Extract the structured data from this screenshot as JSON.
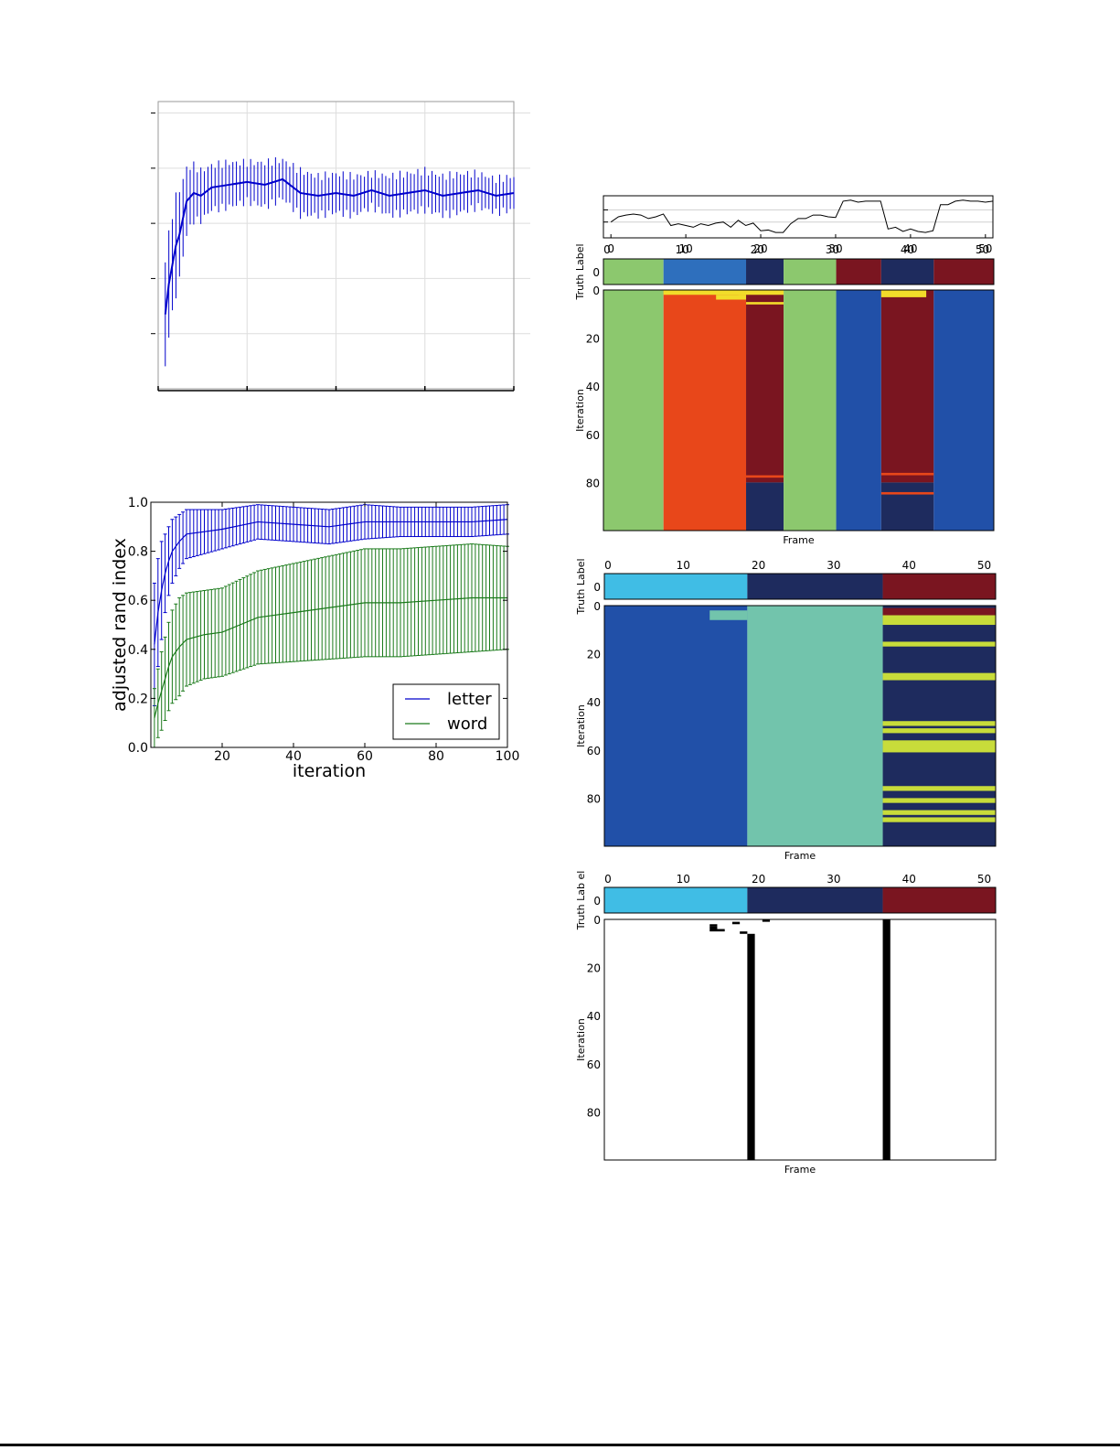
{
  "colors": {
    "letter": "#0000cc",
    "word": "#1a7a1a",
    "light_green": "#8cc86e",
    "mid_blue": "#2e6fbd",
    "navy": "#1e2b5e",
    "dark_red": "#7a1520",
    "orange": "#e8471a",
    "royal_blue": "#2150a8",
    "sky_blue": "#40bde5",
    "teal": "#72c4ac",
    "yellow": "#f2dc2a",
    "yellow_green": "#c8dc3a"
  },
  "chart_data": [
    {
      "id": "top-left",
      "type": "line",
      "title": "",
      "xlabel": "",
      "ylabel": "",
      "xlim": [
        0,
        100
      ],
      "ylim": [
        0,
        1.0
      ],
      "grid": true,
      "x_ticks": [
        0,
        25,
        50,
        75,
        100
      ],
      "y_ticks": [
        0.2,
        0.4,
        0.6,
        0.8,
        1.0
      ],
      "tick_labels_visible": false,
      "series": [
        {
          "color": "#0000cc",
          "x": [
            2,
            3,
            4,
            5,
            6,
            7,
            8,
            10,
            12,
            15,
            20,
            25,
            30,
            35,
            40,
            45,
            50,
            55,
            60,
            65,
            70,
            75,
            80,
            85,
            90,
            95,
            100
          ],
          "mean": [
            0.27,
            0.38,
            0.45,
            0.52,
            0.56,
            0.62,
            0.68,
            0.71,
            0.7,
            0.73,
            0.74,
            0.75,
            0.74,
            0.76,
            0.71,
            0.7,
            0.71,
            0.7,
            0.72,
            0.7,
            0.71,
            0.72,
            0.7,
            0.71,
            0.72,
            0.7,
            0.71
          ],
          "err": [
            0.2,
            0.18,
            0.18,
            0.18,
            0.16,
            0.14,
            0.12,
            0.1,
            0.09,
            0.08,
            0.08,
            0.07,
            0.08,
            0.07,
            0.08,
            0.07,
            0.07,
            0.07,
            0.06,
            0.07,
            0.07,
            0.07,
            0.07,
            0.07,
            0.06,
            0.06,
            0.06
          ]
        }
      ]
    },
    {
      "id": "ari",
      "type": "line",
      "xlabel": "iteration",
      "ylabel": "adjusted rand index",
      "xlim": [
        0,
        100
      ],
      "ylim": [
        0,
        1.0
      ],
      "x_ticks": [
        "20",
        "40",
        "60",
        "80",
        "100"
      ],
      "y_ticks": [
        "0.0",
        "0.2",
        "0.4",
        "0.6",
        "0.8",
        "1.0"
      ],
      "legend_position": "lower-right",
      "series": [
        {
          "name": "letter",
          "color": "#0000cc",
          "x": [
            1,
            2,
            3,
            4,
            5,
            6,
            8,
            10,
            15,
            20,
            30,
            40,
            50,
            60,
            70,
            80,
            90,
            100
          ],
          "mean": [
            0.42,
            0.55,
            0.64,
            0.71,
            0.76,
            0.8,
            0.84,
            0.87,
            0.88,
            0.89,
            0.92,
            0.91,
            0.9,
            0.92,
            0.92,
            0.92,
            0.92,
            0.93
          ],
          "err": [
            0.25,
            0.22,
            0.2,
            0.16,
            0.14,
            0.13,
            0.11,
            0.1,
            0.09,
            0.08,
            0.07,
            0.07,
            0.07,
            0.07,
            0.06,
            0.06,
            0.06,
            0.06
          ]
        },
        {
          "name": "word",
          "color": "#1a7a1a",
          "x": [
            1,
            2,
            3,
            4,
            5,
            6,
            8,
            10,
            15,
            20,
            30,
            40,
            50,
            60,
            70,
            80,
            90,
            100
          ],
          "mean": [
            0.12,
            0.18,
            0.23,
            0.28,
            0.33,
            0.37,
            0.41,
            0.44,
            0.46,
            0.47,
            0.53,
            0.55,
            0.57,
            0.59,
            0.59,
            0.6,
            0.61,
            0.61
          ],
          "err": [
            0.12,
            0.14,
            0.16,
            0.17,
            0.18,
            0.19,
            0.2,
            0.19,
            0.18,
            0.18,
            0.19,
            0.2,
            0.21,
            0.22,
            0.22,
            0.22,
            0.22,
            0.21
          ]
        }
      ]
    },
    {
      "id": "sensor",
      "type": "line",
      "xlim": [
        -1,
        51
      ],
      "x_ticks": [
        "0",
        "10",
        "20",
        "30",
        "40",
        "50"
      ],
      "values": [
        0.35,
        0.5,
        0.55,
        0.58,
        0.55,
        0.45,
        0.5,
        0.58,
        0.25,
        0.3,
        0.25,
        0.2,
        0.3,
        0.25,
        0.32,
        0.35,
        0.2,
        0.4,
        0.25,
        0.32,
        0.1,
        0.12,
        0.05,
        0.05,
        0.3,
        0.45,
        0.45,
        0.55,
        0.55,
        0.5,
        0.48,
        0.95,
        0.98,
        0.92,
        0.95,
        0.95,
        0.95,
        0.15,
        0.2,
        0.08,
        0.15,
        0.08,
        0.05,
        0.1,
        0.85,
        0.85,
        0.95,
        0.98,
        0.95,
        0.95,
        0.92,
        0.95
      ]
    },
    {
      "id": "heatmap-a",
      "type": "heatmap",
      "x_ticks": [
        "0",
        "10",
        "20",
        "30",
        "40",
        "50"
      ],
      "y_ticks": [
        "0",
        "20",
        "40",
        "60",
        "80"
      ],
      "truth_ylabel": "Truth Label",
      "truth_ytick": "0",
      "ylabel": "Iteration",
      "xlabel": "Frame",
      "truth": [
        {
          "from": 0,
          "to": 7,
          "color": "#8cc86e"
        },
        {
          "from": 8,
          "to": 18,
          "color": "#2e6fbd"
        },
        {
          "from": 19,
          "to": 23,
          "color": "#1e2b5e"
        },
        {
          "from": 24,
          "to": 30,
          "color": "#8cc86e"
        },
        {
          "from": 31,
          "to": 36,
          "color": "#7a1520"
        },
        {
          "from": 37,
          "to": 43,
          "color": "#1e2b5e"
        },
        {
          "from": 44,
          "to": 51,
          "color": "#7a1520"
        }
      ],
      "iterations": [
        {
          "from": 0,
          "to": 7,
          "it0": 0,
          "it1": 99,
          "color": "#8cc86e"
        },
        {
          "from": 8,
          "to": 18,
          "it0": 0,
          "it1": 99,
          "color": "#e8471a"
        },
        {
          "from": 19,
          "to": 23,
          "it0": 0,
          "it1": 79,
          "color": "#7a1520"
        },
        {
          "from": 19,
          "to": 23,
          "it0": 80,
          "it1": 99,
          "color": "#1e2b5e"
        },
        {
          "from": 24,
          "to": 30,
          "it0": 0,
          "it1": 99,
          "color": "#8cc86e"
        },
        {
          "from": 31,
          "to": 36,
          "it0": 0,
          "it1": 99,
          "color": "#2150a8"
        },
        {
          "from": 37,
          "to": 43,
          "it0": 0,
          "it1": 79,
          "color": "#7a1520"
        },
        {
          "from": 37,
          "to": 43,
          "it0": 80,
          "it1": 99,
          "color": "#1e2b5e"
        },
        {
          "from": 44,
          "to": 51,
          "it0": 0,
          "it1": 99,
          "color": "#2150a8"
        },
        {
          "from": 8,
          "to": 18,
          "it0": 0,
          "it1": 1,
          "color": "#f2dc2a"
        },
        {
          "from": 15,
          "to": 18,
          "it0": 2,
          "it1": 3,
          "color": "#f2dc2a"
        },
        {
          "from": 18,
          "to": 23,
          "it0": 0,
          "it1": 1,
          "color": "#f2dc2a"
        },
        {
          "from": 19,
          "to": 23,
          "it0": 5,
          "it1": 5,
          "color": "#f2dc2a"
        },
        {
          "from": 37,
          "to": 42,
          "it0": 0,
          "it1": 2,
          "color": "#f2dc2a"
        },
        {
          "from": 19,
          "to": 23,
          "it0": 77,
          "it1": 77,
          "color": "#e8471a"
        },
        {
          "from": 37,
          "to": 43,
          "it0": 76,
          "it1": 76,
          "color": "#e8471a"
        },
        {
          "from": 37,
          "to": 43,
          "it0": 84,
          "it1": 84,
          "color": "#e8471a"
        }
      ]
    },
    {
      "id": "heatmap-b",
      "type": "heatmap",
      "x_ticks": [
        "0",
        "10",
        "20",
        "30",
        "40",
        "50"
      ],
      "y_ticks": [
        "0",
        "20",
        "40",
        "60",
        "80"
      ],
      "truth_ylabel": "Truth Label",
      "truth_ytick": "0",
      "ylabel": "Iteration",
      "xlabel": "Frame",
      "truth": [
        {
          "from": 0,
          "to": 18,
          "color": "#40bde5"
        },
        {
          "from": 19,
          "to": 36,
          "color": "#1e2b5e"
        },
        {
          "from": 37,
          "to": 51,
          "color": "#7a1520"
        }
      ],
      "iterations": [
        {
          "from": 0,
          "to": 18,
          "it0": 0,
          "it1": 99,
          "color": "#2150a8"
        },
        {
          "from": 19,
          "to": 36,
          "it0": 0,
          "it1": 99,
          "color": "#72c4ac"
        },
        {
          "from": 37,
          "to": 51,
          "it0": 0,
          "it1": 99,
          "color": "#1e2b5e"
        },
        {
          "from": 14,
          "to": 18,
          "it0": 2,
          "it1": 5,
          "color": "#72c4ac"
        },
        {
          "from": 37,
          "to": 51,
          "it0": 1,
          "it1": 3,
          "color": "#7a1520"
        },
        {
          "from": 37,
          "to": 51,
          "it0": 4,
          "it1": 7,
          "color": "#c8dc3a"
        },
        {
          "from": 37,
          "to": 51,
          "it0": 15,
          "it1": 16,
          "color": "#c8dc3a"
        },
        {
          "from": 37,
          "to": 51,
          "it0": 28,
          "it1": 30,
          "color": "#c8dc3a"
        },
        {
          "from": 37,
          "to": 51,
          "it0": 48,
          "it1": 49,
          "color": "#c8dc3a"
        },
        {
          "from": 37,
          "to": 51,
          "it0": 51,
          "it1": 52,
          "color": "#c8dc3a"
        },
        {
          "from": 37,
          "to": 51,
          "it0": 56,
          "it1": 60,
          "color": "#c8dc3a"
        },
        {
          "from": 37,
          "to": 51,
          "it0": 75,
          "it1": 76,
          "color": "#c8dc3a"
        },
        {
          "from": 37,
          "to": 51,
          "it0": 80,
          "it1": 81,
          "color": "#c8dc3a"
        },
        {
          "from": 37,
          "to": 51,
          "it0": 85,
          "it1": 86,
          "color": "#c8dc3a"
        },
        {
          "from": 37,
          "to": 51,
          "it0": 88,
          "it1": 89,
          "color": "#c8dc3a"
        }
      ]
    },
    {
      "id": "heatmap-c",
      "type": "heatmap",
      "x_ticks": [
        "0",
        "10",
        "20",
        "30",
        "40",
        "50"
      ],
      "y_ticks": [
        "0",
        "20",
        "40",
        "60",
        "80"
      ],
      "truth_ylabel": "Truth Lab el",
      "truth_ytick": "0",
      "ylabel": "Iteration",
      "xlabel": "Frame",
      "truth": [
        {
          "from": 0,
          "to": 18,
          "color": "#40bde5"
        },
        {
          "from": 19,
          "to": 36,
          "color": "#1e2b5e"
        },
        {
          "from": 37,
          "to": 51,
          "color": "#7a1520"
        }
      ],
      "iterations": [
        {
          "from": 0,
          "to": 51,
          "it0": 0,
          "it1": 99,
          "color": "#ffffff"
        },
        {
          "from": 19,
          "to": 19,
          "it0": 6,
          "it1": 99,
          "color": "#000000"
        },
        {
          "from": 37,
          "to": 37,
          "it0": 0,
          "it1": 99,
          "color": "#000000"
        },
        {
          "from": 14,
          "to": 14,
          "it0": 2,
          "it1": 2,
          "color": "#000000"
        },
        {
          "from": 14,
          "to": 15,
          "it0": 4,
          "it1": 4,
          "color": "#000000"
        },
        {
          "from": 14,
          "to": 14,
          "it0": 3,
          "it1": 3,
          "color": "#000000"
        },
        {
          "from": 17,
          "to": 17,
          "it0": 1,
          "it1": 1,
          "color": "#000000"
        },
        {
          "from": 18,
          "to": 18,
          "it0": 5,
          "it1": 5,
          "color": "#000000"
        },
        {
          "from": 21,
          "to": 21,
          "it0": 0,
          "it1": 0,
          "color": "#000000"
        }
      ]
    }
  ]
}
